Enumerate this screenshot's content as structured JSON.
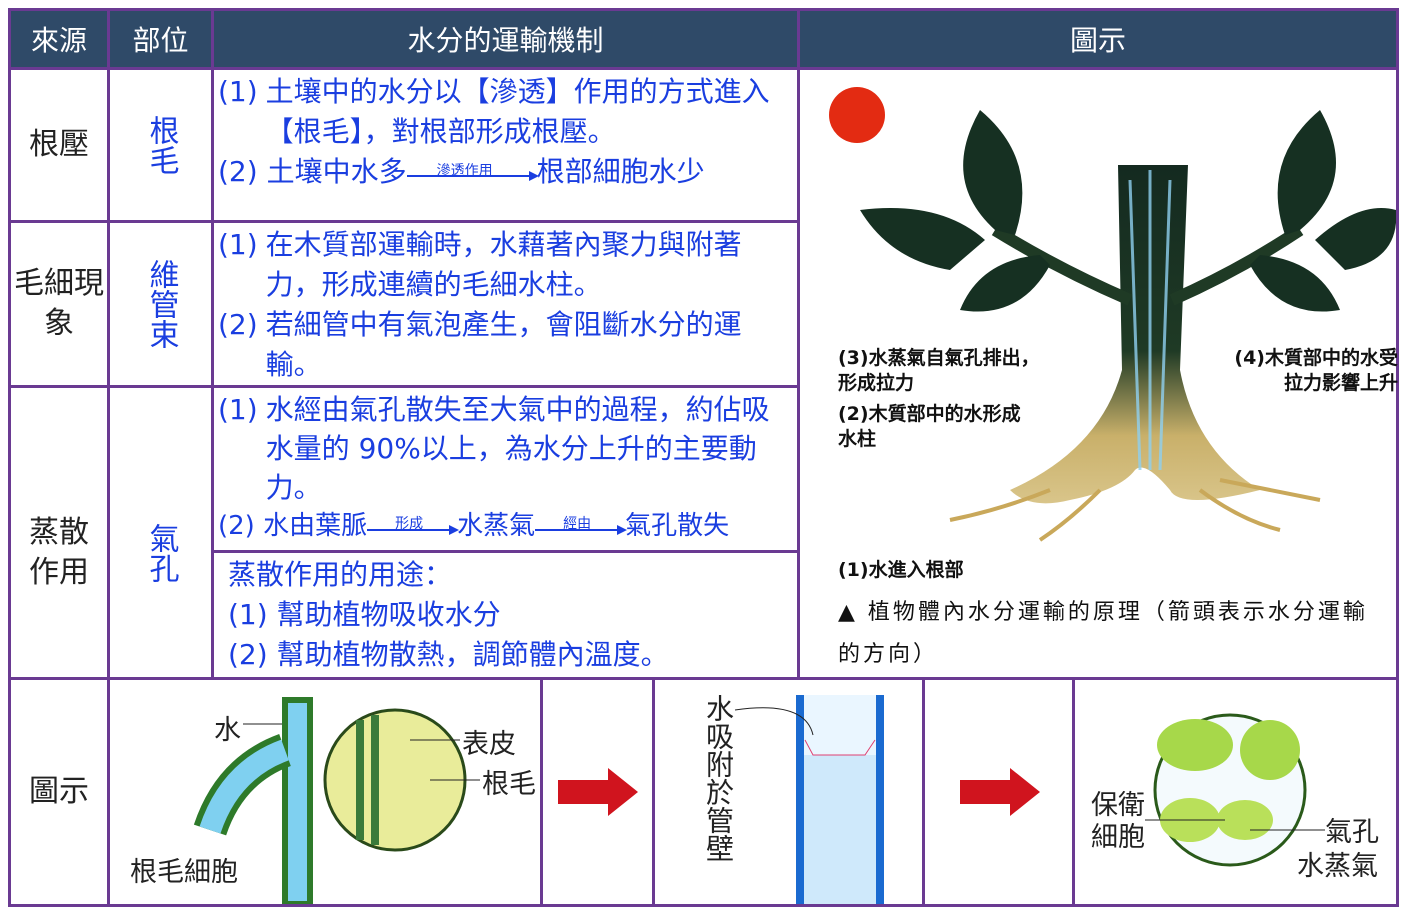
{
  "header": [
    "來源",
    "部位",
    "水分的運輸機制",
    "圖示"
  ],
  "rows": [
    {
      "source": "根壓",
      "part": "根毛",
      "mechanism": [
        {
          "num": "(1)",
          "text": "土壤中的水分以【滲透】作用的方式進入【根毛】，對根部形成根壓。"
        },
        {
          "num": "(2)",
          "from": "土壤中水多",
          "arrow": "滲透作用",
          "to": "根部細胞水少"
        }
      ]
    },
    {
      "source": "毛細現象",
      "part": "維管束",
      "mechanism": [
        {
          "num": "(1)",
          "text": "在木質部運輸時，水藉著內聚力與附著力，形成連續的毛細水柱。"
        },
        {
          "num": "(2)",
          "text": "若細管中有氣泡產生，會阻斷水分的運輸。"
        }
      ]
    },
    {
      "source": "蒸散作用",
      "part": "氣孔",
      "mechanism": [
        {
          "num": "(1)",
          "text": "水經由氣孔散失至大氣中的過程，約佔吸水量的 90%以上，為水分上升的主要動力。"
        },
        {
          "num": "(2)",
          "from": "水由葉脈",
          "arrow1": "形成",
          "mid": "水蒸氣",
          "arrow2": "經由",
          "to": "氣孔散失"
        }
      ],
      "usage": {
        "title": "蒸散作用的用途：",
        "items": [
          "(1) 幫助植物吸收水分",
          "(2) 幫助植物散熱，調節體內溫度。"
        ]
      }
    }
  ],
  "figure": {
    "labels": [
      "(3)水蒸氣自氣孔排出，形成拉力",
      "(4)木質部中的水受拉力影響上升",
      "(2)木質部中的水形成水柱",
      "(1)水進入根部"
    ],
    "caption": "植物體內水分運輸的原理（箭頭表示水分運輸的方向）"
  },
  "bottom": {
    "label": "圖示",
    "root": [
      "水",
      "表皮",
      "根毛",
      "根毛細胞"
    ],
    "tube": "水吸附於管壁",
    "stoma": [
      "保衛細胞",
      "氣孔",
      "水蒸氣"
    ]
  }
}
